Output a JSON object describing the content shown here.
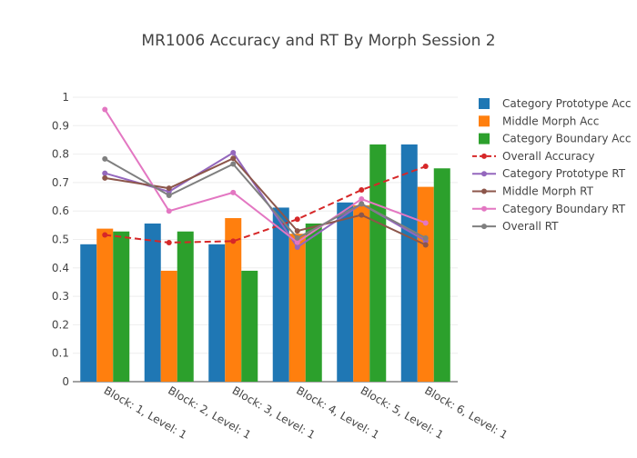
{
  "chart_data": {
    "type": "bar",
    "title": "MR1006 Accuracy and RT By Morph Session 2",
    "xlabel": "",
    "ylabel": "",
    "ylim": [
      0,
      1
    ],
    "yticks": [
      0,
      0.1,
      0.2,
      0.3,
      0.4,
      0.5,
      0.6,
      0.7,
      0.8,
      0.9,
      1
    ],
    "ytick_labels": [
      "0",
      "0.1",
      "0.2",
      "0.3",
      "0.4",
      "0.5",
      "0.6",
      "0.7",
      "0.8",
      "0.9",
      "1"
    ],
    "grid": true,
    "legend_position": "right",
    "categories": [
      "Block: 1, Level: 1",
      "Block: 2, Level: 1",
      "Block: 3, Level: 1",
      "Block: 4, Level: 1",
      "Block: 5, Level: 1",
      "Block: 6, Level: 1"
    ],
    "bar_series": [
      {
        "name": "Category Prototype Acc",
        "color": "#1f77b4",
        "values": [
          0.483,
          0.556,
          0.483,
          0.612,
          0.63,
          0.834
        ]
      },
      {
        "name": "Middle Morph Acc",
        "color": "#ff7f0e",
        "values": [
          0.538,
          0.39,
          0.575,
          0.52,
          0.62,
          0.685
        ]
      },
      {
        "name": "Category Boundary Acc",
        "color": "#2ca02c",
        "values": [
          0.528,
          0.528,
          0.39,
          0.556,
          0.834,
          0.75
        ]
      }
    ],
    "line_series": [
      {
        "name": "Overall Accuracy",
        "color": "#d62728",
        "dash": true,
        "values": [
          0.516,
          0.489,
          0.494,
          0.571,
          0.674,
          0.757
        ]
      },
      {
        "name": "Category Prototype RT",
        "color": "#9467bd",
        "dash": false,
        "values": [
          0.733,
          0.668,
          0.805,
          0.473,
          0.625,
          0.495
        ]
      },
      {
        "name": "Middle Morph RT",
        "color": "#8c564b",
        "dash": false,
        "values": [
          0.716,
          0.68,
          0.785,
          0.53,
          0.586,
          0.481
        ]
      },
      {
        "name": "Category Boundary RT",
        "color": "#e377c2",
        "dash": false,
        "values": [
          0.957,
          0.6,
          0.665,
          0.49,
          0.642,
          0.558
        ]
      },
      {
        "name": "Overall RT",
        "color": "#7f7f7f",
        "dash": false,
        "values": [
          0.783,
          0.655,
          0.765,
          0.505,
          0.625,
          0.505
        ]
      }
    ]
  }
}
